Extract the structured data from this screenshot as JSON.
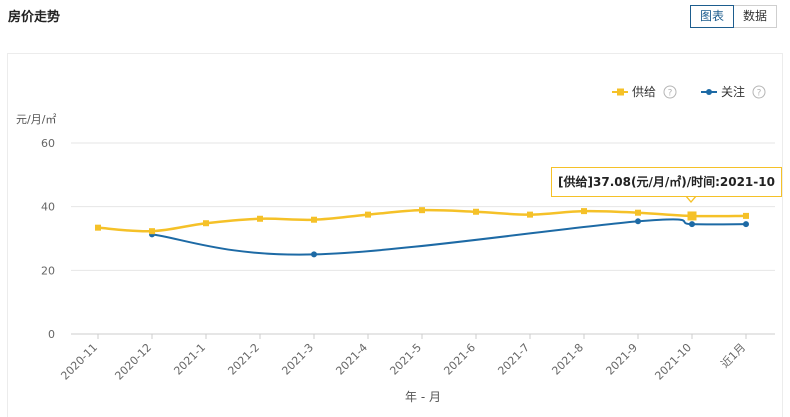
{
  "header": {
    "title": "房价走势",
    "view_toggle": {
      "chart_label": "图表",
      "data_label": "数据"
    }
  },
  "colors": {
    "supply": "#f5c128",
    "attention": "#1d6aa5",
    "grid": "#e6e6e6",
    "axis": "#cccccc"
  },
  "tooltip": {
    "text": "[供给]37.08(元/月/㎡)/时间:2021-10"
  },
  "chart_data": {
    "type": "line",
    "title": "房价走势",
    "xlabel": "年 - 月",
    "ylabel": "元/月/㎡",
    "ylim": [
      0,
      60
    ],
    "yticks": [
      0,
      20,
      40,
      60
    ],
    "grid": true,
    "legend_position": "top-right",
    "categories": [
      "2020-11",
      "2020-12",
      "2021-1",
      "2021-2",
      "2021-3",
      "2021-4",
      "2021-5",
      "2021-6",
      "2021-7",
      "2021-8",
      "2021-9",
      "2021-10",
      "近1月"
    ],
    "series": [
      {
        "name": "供给",
        "color": "#f5c128",
        "values": [
          33.4,
          32.3,
          34.8,
          36.2,
          35.9,
          37.5,
          38.9,
          38.4,
          37.5,
          38.6,
          38.1,
          37.08,
          37.1
        ]
      },
      {
        "name": "关注",
        "color": "#1d6aa5",
        "values": [
          null,
          31.3,
          null,
          null,
          25.0,
          null,
          null,
          null,
          null,
          null,
          35.4,
          34.5,
          34.5
        ]
      }
    ],
    "legend_help_icon": "?"
  }
}
